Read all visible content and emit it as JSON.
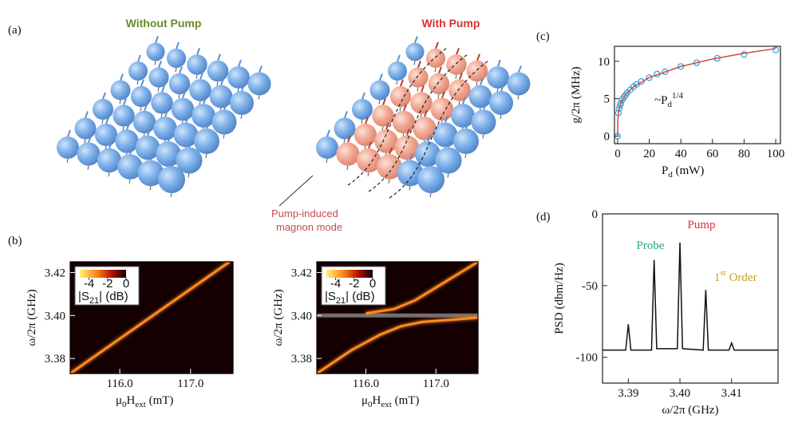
{
  "figure": {
    "panel_labels": [
      "(a)",
      "(b)",
      "(c)",
      "(d)"
    ],
    "illustration": {
      "left_title": "Without Pump",
      "right_title": "With Pump",
      "annotation": [
        "Pump-induced",
        "magnon mode"
      ]
    }
  },
  "chart_data": [
    {
      "type": "heatmap",
      "x_label": [
        "μ",
        "0",
        "H",
        "ext",
        " (mT)"
      ],
      "y_label": "ω/2π (GHz)",
      "xlim": [
        115.3,
        117.6
      ],
      "ylim": [
        3.373,
        3.425
      ],
      "xticks": [
        {
          "value": 116,
          "label": "116.0"
        },
        {
          "value": 117,
          "label": "117.0"
        }
      ],
      "yticks": [
        3.38,
        {
          "value": 3.4,
          "label": "3.40"
        },
        3.42
      ],
      "colorbar": {
        "label": [
          "|S",
          "21",
          "| (dB)"
        ],
        "lim": [
          -5,
          0
        ],
        "ticks": [
          -4,
          -2,
          0
        ]
      },
      "series": [
        {
          "color": "#ff8a1c",
          "x": [
            115.3,
            117.55
          ],
          "y": [
            3.373,
            3.425
          ]
        }
      ]
    },
    {
      "type": "heatmap",
      "x_label": [
        "μ",
        "0",
        "H",
        "ext",
        " (mT)"
      ],
      "y_label": "ω/2π (GHz)",
      "xlim": [
        115.3,
        117.6
      ],
      "ylim": [
        3.373,
        3.425
      ],
      "xticks": [
        {
          "value": 116,
          "label": "116.0"
        },
        {
          "value": 117,
          "label": "117.0"
        }
      ],
      "yticks": [
        3.38,
        {
          "value": 3.4,
          "label": "3.40"
        },
        3.42
      ],
      "colorbar": {
        "label": [
          "|S",
          "21",
          "| (dB)"
        ],
        "lim": [
          -5,
          0
        ],
        "ticks": [
          -4,
          -2,
          0
        ]
      },
      "hlines": [
        3.4
      ],
      "hline_color": "#8a8a8a",
      "series": [
        {
          "color": "#ff8a1c",
          "x": [
            115.3,
            115.8,
            116.2,
            116.5,
            116.8,
            117.2,
            117.6
          ],
          "y": [
            3.373,
            3.384,
            3.391,
            3.395,
            3.397,
            3.398,
            3.399
          ]
        },
        {
          "color": "#ff8a1c",
          "x": [
            116.0,
            116.4,
            116.7,
            117.0,
            117.3,
            117.6
          ],
          "y": [
            3.401,
            3.403,
            3.407,
            3.413,
            3.419,
            3.425
          ]
        }
      ]
    },
    {
      "type": "scatter",
      "x_label": [
        "P",
        "d",
        " (mW)"
      ],
      "y_label": "g/2π (MHz)",
      "annotation": [
        "~P",
        "d",
        "1/4"
      ],
      "xlim": [
        -2,
        103
      ],
      "ylim": [
        -1,
        12
      ],
      "xticks": [
        0,
        20,
        40,
        60,
        80,
        100
      ],
      "yticks": [
        0,
        5,
        10
      ],
      "series": [
        {
          "style": "markers",
          "color": "#3aa6d8",
          "x": [
            0,
            0.5,
            1,
            1.5,
            2,
            3,
            4,
            5,
            6,
            8,
            10,
            12,
            15,
            20,
            25,
            30,
            40,
            50,
            63,
            80,
            100
          ],
          "y": [
            0,
            3.1,
            3.7,
            4.1,
            4.4,
            4.9,
            5.2,
            5.5,
            5.8,
            6.2,
            6.6,
            6.9,
            7.3,
            7.8,
            8.3,
            8.6,
            9.3,
            9.8,
            10.4,
            10.9,
            11.5
          ]
        },
        {
          "style": "line",
          "color": "#d04848",
          "x": [
            0,
            0.1,
            0.5,
            1,
            2,
            5,
            10,
            20,
            40,
            60,
            80,
            100
          ],
          "y": [
            0,
            2.08,
            3.11,
            3.7,
            4.4,
            5.53,
            6.58,
            7.82,
            9.31,
            10.3,
            11.07,
            11.7
          ]
        }
      ]
    },
    {
      "type": "line",
      "x_label": "ω/2π  (GHz)",
      "y_label": "PSD (dbm/Hz)",
      "xlim": [
        3.385,
        3.419
      ],
      "ylim": [
        -118,
        0
      ],
      "xticks": [
        3.39,
        {
          "value": 3.4,
          "label": "3.40"
        },
        3.41
      ],
      "yticks": [
        0,
        -50,
        -100
      ],
      "labels": {
        "probe": "Probe",
        "pump": "Pump",
        "first_order": [
          "1",
          "st",
          " Order"
        ]
      },
      "label_colors": {
        "probe": "#2aa68a",
        "pump": "#d83030",
        "first_order": "#c8a020"
      },
      "series": [
        {
          "color": "#111111",
          "x": [
            3.385,
            3.3895,
            3.39,
            3.3905,
            3.3945,
            3.395,
            3.3955,
            3.3995,
            3.4,
            3.4005,
            3.4045,
            3.405,
            3.4055,
            3.4095,
            3.41,
            3.4105,
            3.415,
            3.419
          ],
          "y": [
            -95,
            -95,
            -77,
            -95,
            -95,
            -32,
            -94,
            -94,
            -20,
            -94,
            -95,
            -53,
            -95,
            -95,
            -90,
            -95,
            -95,
            -95
          ]
        }
      ]
    }
  ]
}
